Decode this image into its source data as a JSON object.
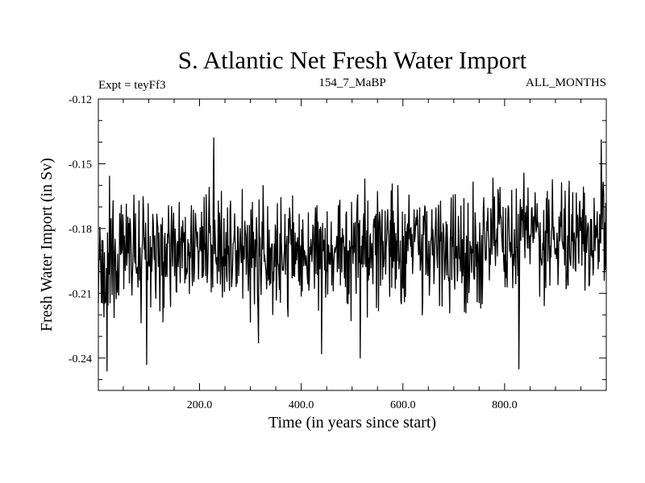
{
  "chart_data": {
    "type": "line",
    "title": "S. Atlantic Net Fresh Water Import",
    "subtitle_left": "Expt = teyFf3",
    "subtitle_center": "154_7_MaBP",
    "subtitle_right": "ALL_MONTHS",
    "xlabel": "Time (in years since start)",
    "ylabel": "Fresh Water Import (in Sv)",
    "xlim": [
      1,
      1000
    ],
    "ylim": [
      -0.255,
      -0.12
    ],
    "xticks": [
      200,
      400,
      600,
      800
    ],
    "xtick_labels": [
      "200.0",
      "400.0",
      "600.0",
      "800.0"
    ],
    "yticks": [
      -0.12,
      -0.15,
      -0.18,
      -0.21,
      -0.24
    ],
    "ytick_labels": [
      "-0.12",
      "-0.15",
      "-0.18",
      "-0.21",
      "-0.24"
    ],
    "series": [
      {
        "name": "Fresh Water Import",
        "generator": {
          "n_points": 1000,
          "x_start": 1,
          "x_step": 1,
          "mean": -0.192,
          "trend_end": 0.008,
          "amplitude": 0.016,
          "seed": 154
        },
        "extrema": [
          {
            "x": 12,
            "y": -0.221
          },
          {
            "x": 18,
            "y": -0.246
          },
          {
            "x": 96,
            "y": -0.243
          },
          {
            "x": 228,
            "y": -0.138
          },
          {
            "x": 316,
            "y": -0.233
          },
          {
            "x": 440,
            "y": -0.238
          },
          {
            "x": 516,
            "y": -0.24
          },
          {
            "x": 828,
            "y": -0.245
          },
          {
            "x": 990,
            "y": -0.139
          }
        ]
      }
    ]
  }
}
